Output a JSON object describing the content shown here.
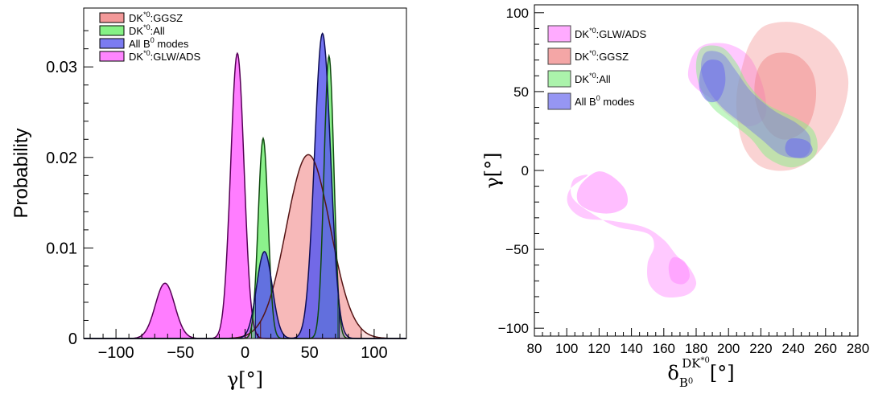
{
  "chart_data": [
    {
      "type": "area",
      "xlabel": "γ[°]",
      "ylabel": "Probability",
      "xlim": [
        -125,
        125
      ],
      "ylim": [
        0,
        0.0365
      ],
      "xticks": [
        -100,
        -50,
        0,
        50,
        100
      ],
      "xtick_labels": [
        "−100",
        "−50",
        "0",
        "50",
        "100"
      ],
      "yticks": [
        0,
        0.01,
        0.02,
        0.03
      ],
      "ytick_labels": [
        "0",
        "0.01",
        "0.02",
        "0.03"
      ],
      "legend_position": "top-left",
      "series": [
        {
          "name": "DK*0:GLW/ADS",
          "label_base": "DK",
          "label_sup": "*0",
          "label_tail": ":GLW/ADS",
          "color": "#ff66ff",
          "opacity": 0.85,
          "peaks": [
            {
              "mu": -62,
              "sigma": 7.5,
              "amp": 0.0061
            },
            {
              "mu": -6,
              "sigma": 5.2,
              "amp": 0.0315
            }
          ],
          "cl": [
            -80,
            18
          ]
        },
        {
          "name": "DK*0:GGSZ",
          "label_base": "DK",
          "label_sup": "*0",
          "label_tail": ":GGSZ",
          "color": "#f08080",
          "opacity": 0.55,
          "peaks": [
            {
              "mu": 49,
              "sigma": 17,
              "amp": 0.0203
            }
          ],
          "cl": [
            12,
            90
          ]
        },
        {
          "name": "DK*0:All",
          "label_base": "DK",
          "label_sup": "*0",
          "label_tail": ":All",
          "color": "#66ee66",
          "opacity": 0.75,
          "peaks": [
            {
              "mu": 14,
              "sigma": 3.8,
              "amp": 0.0221
            },
            {
              "mu": 65,
              "sigma": 3.8,
              "amp": 0.0312
            }
          ],
          "cl": [
            5,
            72
          ]
        },
        {
          "name": "All B0 modes",
          "label_base": "All B",
          "label_sup": "0",
          "label_tail": " modes",
          "color": "#5a5aee",
          "opacity": 0.85,
          "peaks": [
            {
              "mu": 15,
              "sigma": 6,
              "amp": 0.0096
            },
            {
              "mu": 60,
              "sigma": 6.2,
              "amp": 0.0337
            }
          ],
          "cl": [
            8,
            73
          ]
        }
      ]
    },
    {
      "type": "scatter",
      "subtype": "2D confidence contours",
      "xlabel": "δ_B0^DK*0[°]",
      "ylabel": "γ[°]",
      "xlim": [
        80,
        280
      ],
      "ylim": [
        -105,
        105
      ],
      "xticks": [
        80,
        100,
        120,
        140,
        160,
        180,
        200,
        220,
        240,
        260,
        280
      ],
      "xtick_labels": [
        "80",
        "100",
        "120",
        "140",
        "160",
        "180",
        "200",
        "220",
        "240",
        "260",
        "280"
      ],
      "yticks": [
        -100,
        -50,
        0,
        50,
        100
      ],
      "ytick_labels": [
        "−100",
        "−50",
        "0",
        "50",
        "100"
      ],
      "legend_position": "top-left",
      "series": [
        {
          "name": "DK*0:GLW/ADS",
          "label_base": "DK",
          "label_sup": "*0",
          "label_tail": ":GLW/ADS",
          "color": "#ff88ff",
          "regions": [
            {
              "cl": "95%",
              "opacity": 0.45,
              "points": [
                [
                  113,
                  -3
                ],
                [
                  102,
                  -12
                ],
                [
                  101,
                  -22
                ],
                [
                  110,
                  -30
                ],
                [
                  128,
                  -32
                ],
                [
                  148,
                  -36
                ],
                [
                  160,
                  -44
                ],
                [
                  168,
                  -54
                ],
                [
                  176,
                  -62
                ],
                [
                  180,
                  -72
                ],
                [
                  174,
                  -79
                ],
                [
                  160,
                  -80
                ],
                [
                  151,
                  -72
                ],
                [
                  150,
                  -59
                ],
                [
                  154,
                  -48
                ],
                [
                  150,
                  -40
                ],
                [
                  132,
                  -36
                ],
                [
                  120,
                  -30
                ],
                [
                  104,
                  -18
                ],
                [
                  104,
                  -6
                ],
                [
                  113,
                  -3
                ]
              ]
            },
            {
              "cl": "68%",
              "opacity": 0.55,
              "points": [
                [
                  118,
                  -1
                ],
                [
                  108,
                  -10
                ],
                [
                  107,
                  -20
                ],
                [
                  116,
                  -26
                ],
                [
                  128,
                  -27
                ],
                [
                  137,
                  -22
                ],
                [
                  136,
                  -12
                ],
                [
                  127,
                  -3
                ],
                [
                  118,
                  -1
                ]
              ]
            },
            {
              "cl": "68%",
              "opacity": 0.55,
              "points": [
                [
                  166,
                  -55
                ],
                [
                  173,
                  -58
                ],
                [
                  176,
                  -67
                ],
                [
                  172,
                  -72
                ],
                [
                  165,
                  -70
                ],
                [
                  163,
                  -61
                ],
                [
                  166,
                  -55
                ]
              ]
            },
            {
              "cl": "95%",
              "opacity": 0.45,
              "points": [
                [
                  178,
                  73
                ],
                [
                  186,
                  80
                ],
                [
                  200,
                  80
                ],
                [
                  212,
                  73
                ],
                [
                  219,
                  60
                ],
                [
                  223,
                  45
                ],
                [
                  222,
                  33
                ],
                [
                  212,
                  28
                ],
                [
                  200,
                  35
                ],
                [
                  190,
                  45
                ],
                [
                  180,
                  52
                ],
                [
                  175,
                  60
                ],
                [
                  178,
                  73
                ]
              ]
            }
          ]
        },
        {
          "name": "DK*0:GGSZ",
          "label_base": "DK",
          "label_sup": "*0",
          "label_tail": ":GGSZ",
          "color": "#f08080",
          "regions": [
            {
              "cl": "95%",
              "opacity": 0.35,
              "points": [
                [
                  223,
                  92
                ],
                [
                  240,
                  94
                ],
                [
                  256,
                  88
                ],
                [
                  268,
                  76
                ],
                [
                  274,
                  58
                ],
                [
                  271,
                  38
                ],
                [
                  262,
                  20
                ],
                [
                  250,
                  6
                ],
                [
                  236,
                  0
                ],
                [
                  221,
                  2
                ],
                [
                  211,
                  12
                ],
                [
                  206,
                  28
                ],
                [
                  205,
                  48
                ],
                [
                  209,
                  68
                ],
                [
                  214,
                  82
                ],
                [
                  223,
                  92
                ]
              ]
            },
            {
              "cl": "68%",
              "opacity": 0.45,
              "points": [
                [
                  228,
                  74
                ],
                [
                  242,
                  73
                ],
                [
                  252,
                  62
                ],
                [
                  254,
                  45
                ],
                [
                  249,
                  28
                ],
                [
                  238,
                  20
                ],
                [
                  228,
                  22
                ],
                [
                  220,
                  33
                ],
                [
                  216,
                  50
                ],
                [
                  219,
                  66
                ],
                [
                  228,
                  74
                ]
              ]
            }
          ]
        },
        {
          "name": "DK*0:All",
          "label_base": "DK",
          "label_sup": "*0",
          "label_tail": ":All",
          "color": "#88ee88",
          "regions": [
            {
              "cl": "95%",
              "opacity": 0.5,
              "points": [
                [
                  184,
                  78
                ],
                [
                  196,
                  78
                ],
                [
                  205,
                  68
                ],
                [
                  212,
                  55
                ],
                [
                  224,
                  42
                ],
                [
                  240,
                  34
                ],
                [
                  252,
                  26
                ],
                [
                  255,
                  14
                ],
                [
                  250,
                  6
                ],
                [
                  238,
                  2
                ],
                [
                  224,
                  8
                ],
                [
                  214,
                  20
                ],
                [
                  202,
                  30
                ],
                [
                  190,
                  40
                ],
                [
                  182,
                  54
                ],
                [
                  180,
                  68
                ],
                [
                  184,
                  78
                ]
              ]
            }
          ]
        },
        {
          "name": "All B0 modes",
          "label_base": "All B",
          "label_sup": "0",
          "label_tail": " modes",
          "color": "#6a6aee",
          "regions": [
            {
              "cl": "95%",
              "opacity": 0.4,
              "points": [
                [
                  186,
                  75
                ],
                [
                  196,
                  74
                ],
                [
                  204,
                  64
                ],
                [
                  214,
                  50
                ],
                [
                  228,
                  38
                ],
                [
                  242,
                  30
                ],
                [
                  250,
                  22
                ],
                [
                  250,
                  12
                ],
                [
                  244,
                  8
                ],
                [
                  232,
                  10
                ],
                [
                  220,
                  20
                ],
                [
                  208,
                  30
                ],
                [
                  196,
                  40
                ],
                [
                  187,
                  52
                ],
                [
                  183,
                  65
                ],
                [
                  186,
                  75
                ]
              ]
            },
            {
              "cl": "68%",
              "opacity": 0.55,
              "points": [
                [
                  188,
                  70
                ],
                [
                  196,
                  68
                ],
                [
                  198,
                  56
                ],
                [
                  194,
                  45
                ],
                [
                  187,
                  44
                ],
                [
                  182,
                  52
                ],
                [
                  183,
                  64
                ],
                [
                  188,
                  70
                ]
              ]
            },
            {
              "cl": "68%",
              "opacity": 0.55,
              "points": [
                [
                  238,
                  20
                ],
                [
                  248,
                  19
                ],
                [
                  252,
                  13
                ],
                [
                  247,
                  8
                ],
                [
                  238,
                  9
                ],
                [
                  235,
                  14
                ],
                [
                  238,
                  20
                ]
              ]
            }
          ]
        }
      ]
    }
  ]
}
